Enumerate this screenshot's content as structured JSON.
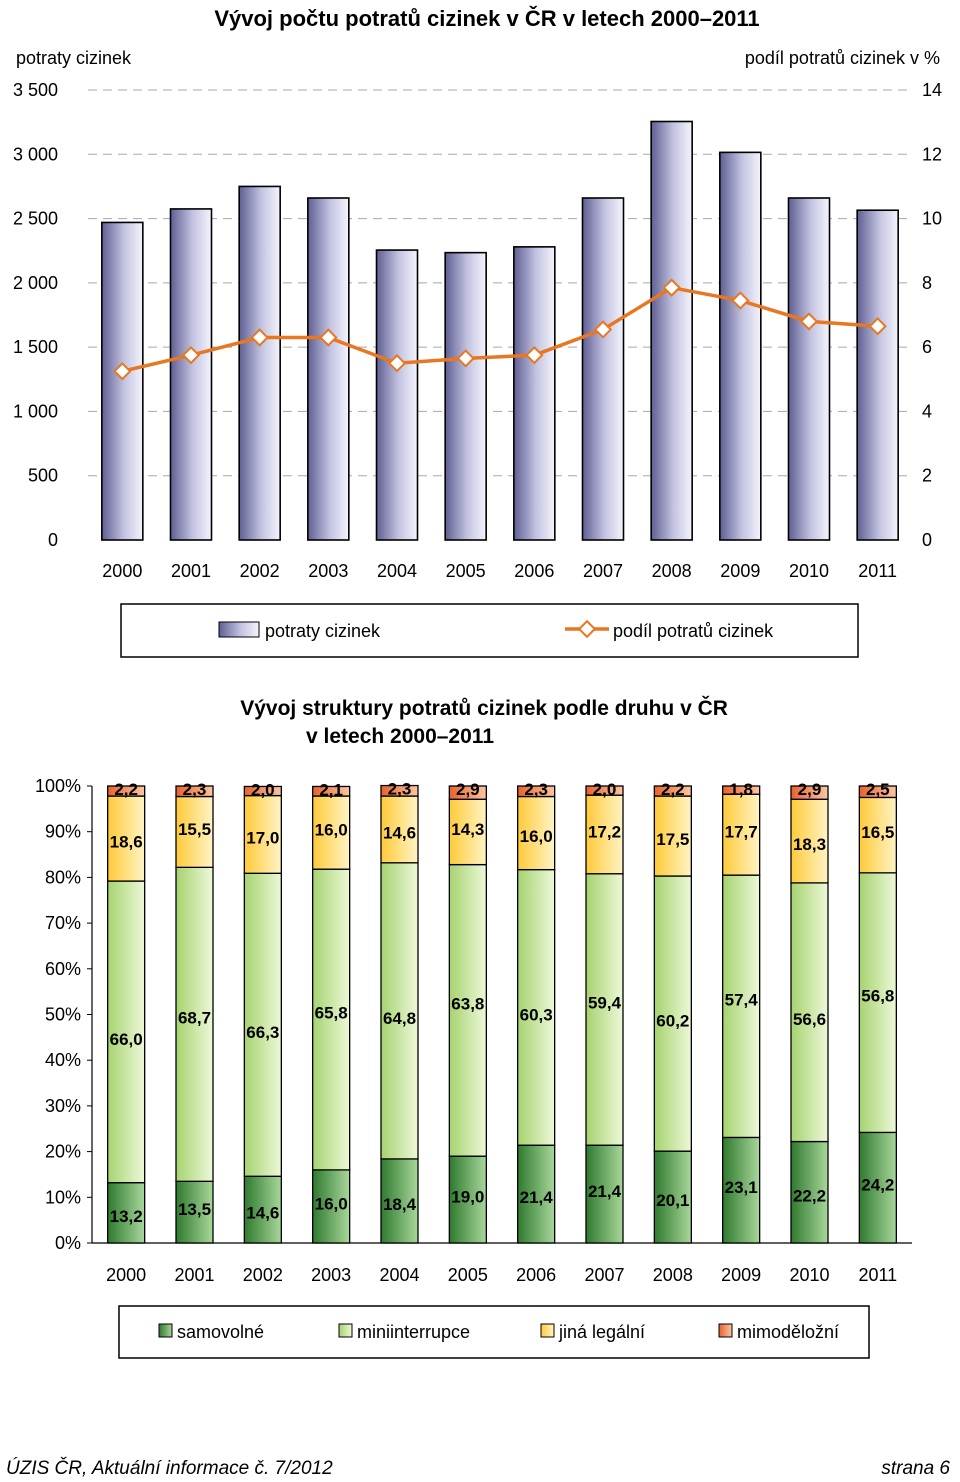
{
  "chart_data": [
    {
      "type": "bar+line",
      "title": "Vývoj počtu potratů cizinek v ČR v letech 2000–2011",
      "ylabel": "potraty cizinek",
      "y2label": "podíl potratů cizinek v %",
      "ylim": [
        0,
        3500
      ],
      "y2lim": [
        0,
        14
      ],
      "yticks": [
        "0",
        "500",
        "1 000",
        "1 500",
        "2 000",
        "2 500",
        "3 000",
        "3 500"
      ],
      "y2ticks": [
        "0",
        "2",
        "4",
        "6",
        "8",
        "10",
        "12",
        "14"
      ],
      "categories": [
        "2000",
        "2001",
        "2002",
        "2003",
        "2004",
        "2005",
        "2006",
        "2007",
        "2008",
        "2009",
        "2010",
        "2011"
      ],
      "series": [
        {
          "name": "potraty cizinek",
          "kind": "bar",
          "axis": "left",
          "color": "#9a9ac6",
          "values": [
            2470,
            2575,
            2750,
            2660,
            2255,
            2235,
            2280,
            2660,
            3255,
            3015,
            2660,
            2565
          ]
        },
        {
          "name": "podíl potratů cizinek",
          "kind": "line",
          "axis": "right",
          "color": "#e87722",
          "values": [
            5.25,
            5.75,
            6.3,
            6.3,
            5.5,
            5.65,
            5.75,
            6.55,
            7.85,
            7.45,
            6.8,
            6.65
          ]
        }
      ],
      "grid": "horizontal-dashed",
      "legend": "bottom-boxed"
    },
    {
      "type": "stacked-bar-100",
      "title": "Vývoj struktury potratů cizinek podle druhu v ČR v letech 2000–2011",
      "yticks": [
        "0%",
        "10%",
        "20%",
        "30%",
        "40%",
        "50%",
        "60%",
        "70%",
        "80%",
        "90%",
        "100%"
      ],
      "ylim": [
        0,
        100
      ],
      "categories": [
        "2000",
        "2001",
        "2002",
        "2003",
        "2004",
        "2005",
        "2006",
        "2007",
        "2008",
        "2009",
        "2010",
        "2011"
      ],
      "series": [
        {
          "name": "samovolné",
          "color": "#4f9a4b",
          "values": [
            13.2,
            13.5,
            14.6,
            16.0,
            18.4,
            19.0,
            21.4,
            21.4,
            20.1,
            23.1,
            22.2,
            24.2
          ],
          "labels": [
            "13,2",
            "13,5",
            "14,6",
            "16,0",
            "18,4",
            "19,0",
            "21,4",
            "21,4",
            "20,1",
            "23,1",
            "22,2",
            "24,2"
          ]
        },
        {
          "name": "miniinterrupce",
          "color": "#c6e59a",
          "values": [
            66.0,
            68.7,
            66.3,
            65.8,
            64.8,
            63.8,
            60.3,
            59.4,
            60.2,
            57.4,
            56.6,
            56.8
          ],
          "labels": [
            "66,0",
            "68,7",
            "66,3",
            "65,8",
            "64,8",
            "63,8",
            "60,3",
            "59,4",
            "60,2",
            "57,4",
            "56,6",
            "56,8"
          ]
        },
        {
          "name": "jiná legální",
          "color": "#ffdd7a",
          "values": [
            18.6,
            15.5,
            17.0,
            16.0,
            14.6,
            14.3,
            16.0,
            17.2,
            17.5,
            17.7,
            18.3,
            16.5
          ],
          "labels": [
            "18,6",
            "15,5",
            "17,0",
            "16,0",
            "14,6",
            "14,3",
            "16,0",
            "17,2",
            "17,5",
            "17,7",
            "18,3",
            "16,5"
          ]
        },
        {
          "name": "mimoděložní",
          "color": "#f0845a",
          "values": [
            2.2,
            2.3,
            2.0,
            2.1,
            2.3,
            2.9,
            2.3,
            2.0,
            2.2,
            1.8,
            2.9,
            2.5
          ],
          "labels": [
            "2,2",
            "2,3",
            "2,0",
            "2,1",
            "2,3",
            "2,9",
            "2,3",
            "2,0",
            "2,2",
            "1,8",
            "2,9",
            "2,5"
          ]
        }
      ],
      "legend": "bottom-boxed"
    }
  ],
  "footer": {
    "left": "ÚZIS ČR, Aktuální informace č. 7/2012",
    "right": "strana 6"
  }
}
